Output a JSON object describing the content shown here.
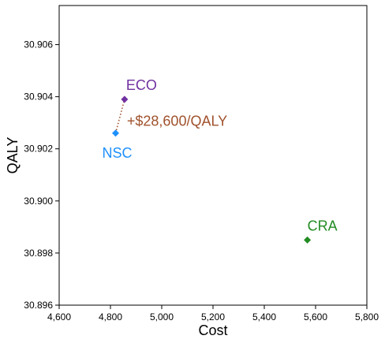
{
  "chart_data": {
    "type": "scatter",
    "xlabel": "Cost",
    "ylabel": "QALY",
    "xlim": [
      4600,
      5800
    ],
    "ylim": [
      30.896,
      30.9075
    ],
    "grid": false,
    "legend": "none",
    "x_ticks": [
      4600,
      4800,
      5000,
      5200,
      5400,
      5600,
      5800
    ],
    "x_tick_labels": [
      "4,600",
      "4,800",
      "5,000",
      "5,200",
      "5,400",
      "5,600",
      "5,800"
    ],
    "y_ticks": [
      30.896,
      30.898,
      30.9,
      30.902,
      30.904,
      30.906
    ],
    "y_tick_labels": [
      "30.896",
      "30.898",
      "30.900",
      "30.902",
      "30.904",
      "30.906"
    ],
    "points": [
      {
        "label": "NSC",
        "x": 4820,
        "y": 30.9026,
        "color": "#1e90ff"
      },
      {
        "label": "ECO",
        "x": 4855,
        "y": 30.9039,
        "color": "#7030a0"
      },
      {
        "label": "CRA",
        "x": 5568,
        "y": 30.8985,
        "color": "#228b22"
      }
    ],
    "annotations": [
      {
        "text": "+$28,600/QALY",
        "from": "NSC",
        "to": "ECO",
        "color": "#a0522d",
        "line_style": "dotted"
      }
    ]
  }
}
